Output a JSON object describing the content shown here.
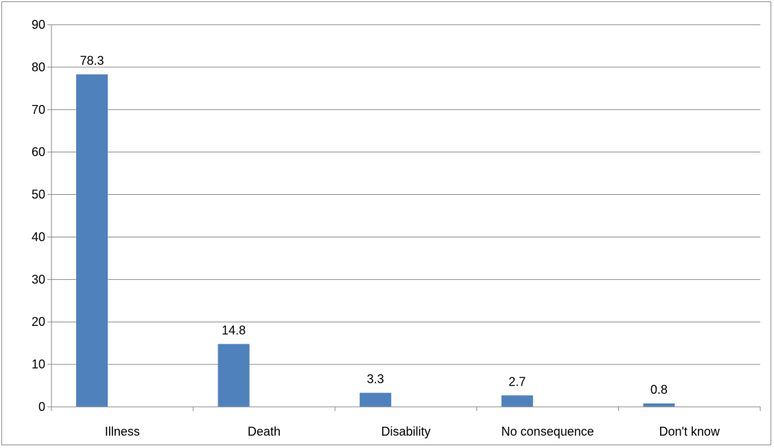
{
  "chart_data": {
    "type": "bar",
    "title": "",
    "xlabel": "",
    "ylabel": "",
    "categories": [
      "Illness",
      "Death",
      "Disability",
      "No consequence",
      "Don't know"
    ],
    "values": [
      78.3,
      14.8,
      3.3,
      2.7,
      0.8
    ],
    "data_labels": [
      "78.3",
      "14.8",
      "3.3",
      "2.7",
      "0.8"
    ],
    "y_ticks": [
      "0",
      "10",
      "20",
      "30",
      "40",
      "50",
      "60",
      "70",
      "80",
      "90"
    ],
    "ylim": [
      0,
      90
    ],
    "grid": true,
    "legend": "none",
    "bar_color": "#4f81bd",
    "gridline_color": "#868686"
  }
}
